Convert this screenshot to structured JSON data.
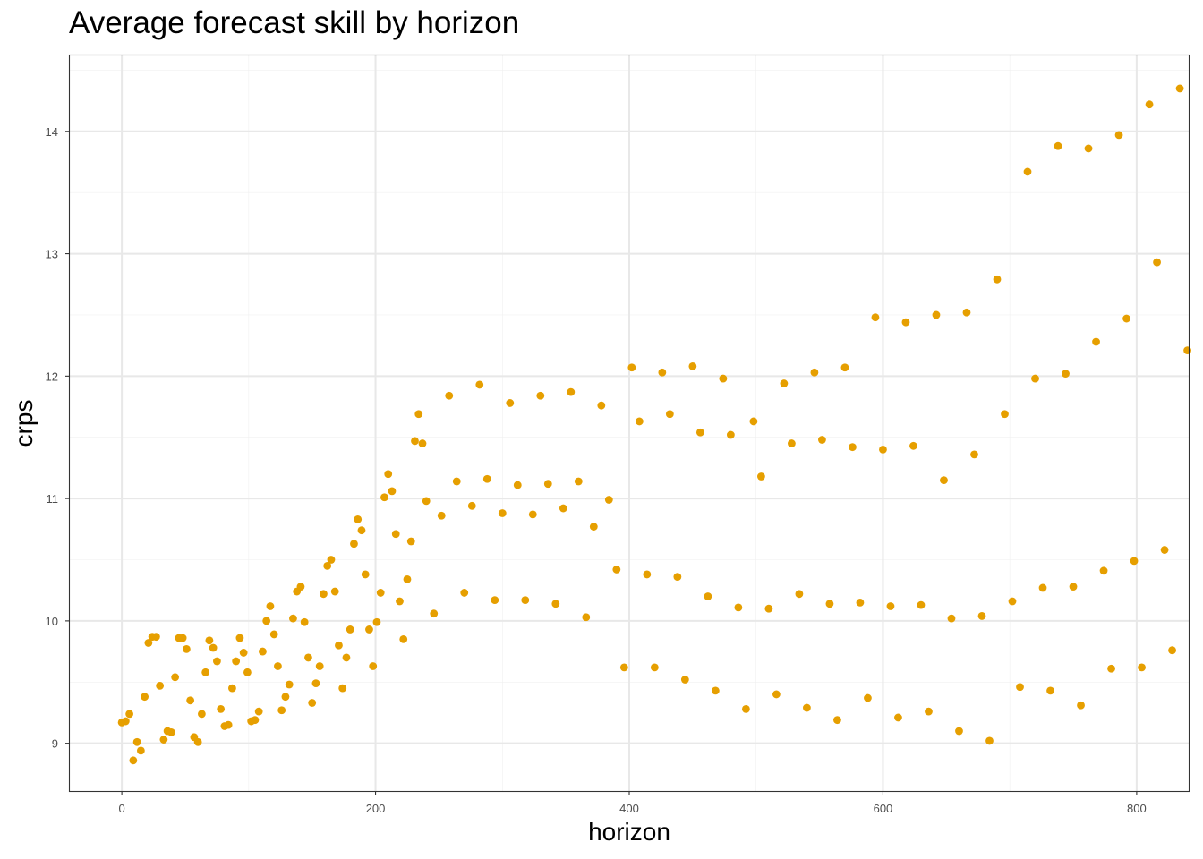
{
  "chart_data": {
    "type": "scatter",
    "title": "Average forecast skill by horizon",
    "xlabel": "horizon",
    "ylabel": "crps",
    "xlim": [
      -41,
      841
    ],
    "ylim": [
      8.61,
      14.62
    ],
    "x_ticks": [
      0,
      200,
      400,
      600,
      800
    ],
    "y_ticks": [
      9,
      10,
      11,
      12,
      13,
      14
    ],
    "grid": true,
    "legend": "none",
    "point_color": "#E69F00",
    "points": [
      [
        0,
        9.17
      ],
      [
        3,
        9.18
      ],
      [
        6,
        9.24
      ],
      [
        9,
        8.86
      ],
      [
        12,
        9.01
      ],
      [
        15,
        8.94
      ],
      [
        18,
        9.38
      ],
      [
        21,
        9.82
      ],
      [
        24,
        9.87
      ],
      [
        27,
        9.87
      ],
      [
        30,
        9.47
      ],
      [
        33,
        9.03
      ],
      [
        36,
        9.1
      ],
      [
        39,
        9.09
      ],
      [
        42,
        9.54
      ],
      [
        45,
        9.86
      ],
      [
        48,
        9.86
      ],
      [
        51,
        9.77
      ],
      [
        54,
        9.35
      ],
      [
        57,
        9.05
      ],
      [
        60,
        9.01
      ],
      [
        63,
        9.24
      ],
      [
        66,
        9.58
      ],
      [
        69,
        9.84
      ],
      [
        72,
        9.78
      ],
      [
        75,
        9.67
      ],
      [
        78,
        9.28
      ],
      [
        81,
        9.14
      ],
      [
        84,
        9.15
      ],
      [
        87,
        9.45
      ],
      [
        90,
        9.67
      ],
      [
        93,
        9.86
      ],
      [
        96,
        9.74
      ],
      [
        99,
        9.58
      ],
      [
        102,
        9.18
      ],
      [
        105,
        9.19
      ],
      [
        108,
        9.26
      ],
      [
        111,
        9.75
      ],
      [
        114,
        10.0
      ],
      [
        117,
        10.12
      ],
      [
        120,
        9.89
      ],
      [
        123,
        9.63
      ],
      [
        126,
        9.27
      ],
      [
        129,
        9.38
      ],
      [
        132,
        9.48
      ],
      [
        135,
        10.02
      ],
      [
        138,
        10.24
      ],
      [
        141,
        10.28
      ],
      [
        144,
        9.99
      ],
      [
        147,
        9.7
      ],
      [
        150,
        9.33
      ],
      [
        153,
        9.49
      ],
      [
        156,
        9.63
      ],
      [
        159,
        10.22
      ],
      [
        162,
        10.45
      ],
      [
        165,
        10.5
      ],
      [
        168,
        10.24
      ],
      [
        171,
        9.8
      ],
      [
        174,
        9.45
      ],
      [
        177,
        9.7
      ],
      [
        180,
        9.93
      ],
      [
        183,
        10.63
      ],
      [
        186,
        10.83
      ],
      [
        189,
        10.74
      ],
      [
        192,
        10.38
      ],
      [
        195,
        9.93
      ],
      [
        198,
        9.63
      ],
      [
        201,
        9.99
      ],
      [
        204,
        10.23
      ],
      [
        207,
        11.01
      ],
      [
        210,
        11.2
      ],
      [
        213,
        11.06
      ],
      [
        216,
        10.71
      ],
      [
        219,
        10.16
      ],
      [
        222,
        9.85
      ],
      [
        225,
        10.34
      ],
      [
        228,
        10.65
      ],
      [
        231,
        11.47
      ],
      [
        234,
        11.69
      ],
      [
        237,
        11.45
      ],
      [
        240,
        10.98
      ],
      [
        246,
        10.06
      ],
      [
        252,
        10.86
      ],
      [
        258,
        11.84
      ],
      [
        264,
        11.14
      ],
      [
        270,
        10.23
      ],
      [
        276,
        10.94
      ],
      [
        282,
        11.93
      ],
      [
        288,
        11.16
      ],
      [
        294,
        10.17
      ],
      [
        300,
        10.88
      ],
      [
        306,
        11.78
      ],
      [
        312,
        11.11
      ],
      [
        318,
        10.17
      ],
      [
        324,
        10.87
      ],
      [
        330,
        11.84
      ],
      [
        336,
        11.12
      ],
      [
        342,
        10.14
      ],
      [
        348,
        10.92
      ],
      [
        354,
        11.87
      ],
      [
        360,
        11.14
      ],
      [
        366,
        10.03
      ],
      [
        372,
        10.77
      ],
      [
        378,
        11.76
      ],
      [
        384,
        10.99
      ],
      [
        390,
        10.42
      ],
      [
        396,
        9.62
      ],
      [
        402,
        12.07
      ],
      [
        408,
        11.63
      ],
      [
        414,
        10.38
      ],
      [
        420,
        9.62
      ],
      [
        426,
        12.03
      ],
      [
        432,
        11.69
      ],
      [
        438,
        10.36
      ],
      [
        444,
        9.52
      ],
      [
        450,
        12.08
      ],
      [
        456,
        11.54
      ],
      [
        462,
        10.2
      ],
      [
        468,
        9.43
      ],
      [
        474,
        11.98
      ],
      [
        480,
        11.52
      ],
      [
        486,
        10.11
      ],
      [
        492,
        9.28
      ],
      [
        498,
        11.63
      ],
      [
        504,
        11.18
      ],
      [
        510,
        10.1
      ],
      [
        516,
        9.4
      ],
      [
        522,
        11.94
      ],
      [
        528,
        11.45
      ],
      [
        534,
        10.22
      ],
      [
        540,
        9.29
      ],
      [
        546,
        12.03
      ],
      [
        552,
        11.48
      ],
      [
        558,
        10.14
      ],
      [
        564,
        9.19
      ],
      [
        570,
        12.07
      ],
      [
        576,
        11.42
      ],
      [
        582,
        10.15
      ],
      [
        588,
        9.37
      ],
      [
        594,
        12.48
      ],
      [
        600,
        11.4
      ],
      [
        606,
        10.12
      ],
      [
        612,
        9.21
      ],
      [
        618,
        12.44
      ],
      [
        624,
        11.43
      ],
      [
        630,
        10.13
      ],
      [
        636,
        9.26
      ],
      [
        642,
        12.5
      ],
      [
        648,
        11.15
      ],
      [
        654,
        10.02
      ],
      [
        660,
        9.1
      ],
      [
        666,
        12.52
      ],
      [
        672,
        11.36
      ],
      [
        678,
        10.04
      ],
      [
        684,
        9.02
      ],
      [
        690,
        12.79
      ],
      [
        696,
        11.69
      ],
      [
        702,
        10.16
      ],
      [
        708,
        9.46
      ],
      [
        714,
        13.67
      ],
      [
        720,
        11.98
      ],
      [
        726,
        10.27
      ],
      [
        732,
        9.43
      ],
      [
        738,
        13.88
      ],
      [
        744,
        12.02
      ],
      [
        750,
        10.28
      ],
      [
        756,
        9.31
      ],
      [
        762,
        13.86
      ],
      [
        768,
        12.28
      ],
      [
        774,
        10.41
      ],
      [
        780,
        9.61
      ],
      [
        786,
        13.97
      ],
      [
        792,
        12.47
      ],
      [
        798,
        10.49
      ],
      [
        804,
        9.62
      ],
      [
        810,
        14.22
      ],
      [
        816,
        12.93
      ],
      [
        822,
        10.58
      ],
      [
        828,
        9.76
      ],
      [
        834,
        14.35
      ],
      [
        840,
        12.21
      ]
    ]
  }
}
